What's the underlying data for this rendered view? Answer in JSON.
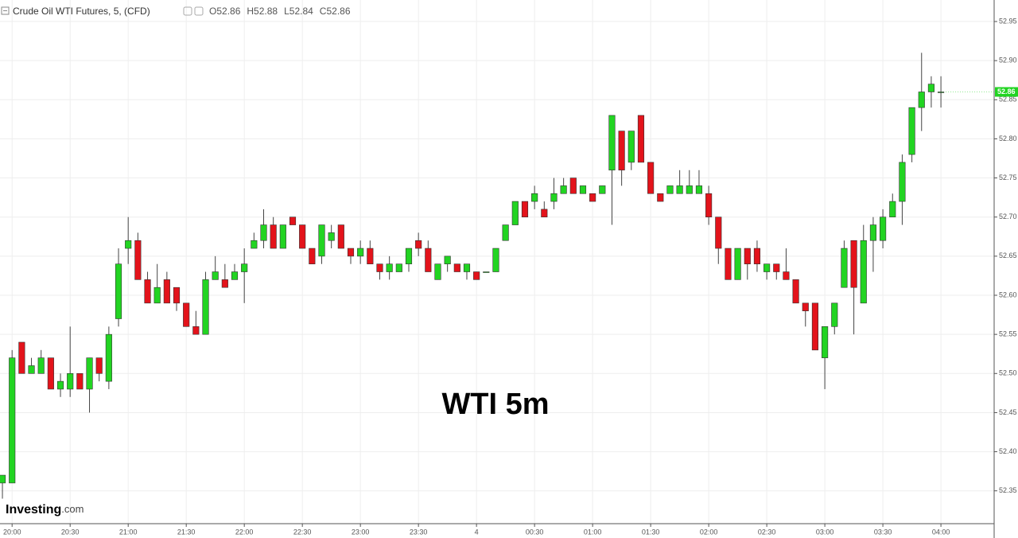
{
  "chart_data": {
    "type": "candlestick",
    "title": "Crude Oil WTI Futures, 5, (CFD)",
    "ohlc_header": [
      {
        "label": "O",
        "value": 52.86
      },
      {
        "label": "H",
        "value": 52.88
      },
      {
        "label": "L",
        "value": 52.84
      },
      {
        "label": "C",
        "value": 52.86
      }
    ],
    "annotation": "WTI 5m",
    "watermark": [
      "Investing",
      ".com"
    ],
    "last_price": 52.86,
    "up_color": "#22d422",
    "down_color": "#e3131b",
    "grid": true,
    "open": [
      52.36,
      52.36,
      52.54,
      52.5,
      52.5,
      52.52,
      52.48,
      52.48,
      52.5,
      52.48,
      52.52,
      52.49,
      52.57,
      52.66,
      52.67,
      52.62,
      52.59,
      52.62,
      52.61,
      52.59,
      52.56,
      52.55,
      52.62,
      52.62,
      52.62,
      52.63,
      52.66,
      52.67,
      52.69,
      52.66,
      52.7,
      52.69,
      52.66,
      52.65,
      52.67,
      52.69,
      52.66,
      52.65,
      52.66,
      52.64,
      52.63,
      52.63,
      52.64,
      52.67,
      52.66,
      52.62,
      52.64,
      52.64,
      52.63,
      52.63,
      52.63,
      52.63,
      52.67,
      52.69,
      52.72,
      52.72,
      52.71,
      52.72,
      52.73,
      52.75,
      52.73,
      52.73,
      52.73,
      52.76,
      52.81,
      52.77,
      52.83,
      52.77,
      52.73,
      52.73,
      52.73,
      52.73,
      52.73,
      52.73,
      52.7,
      52.66,
      52.62,
      52.66,
      52.66,
      52.63,
      52.64,
      52.63,
      52.62,
      52.59,
      52.59,
      52.52,
      52.56,
      52.61,
      52.67,
      52.59,
      52.67,
      52.67,
      52.7,
      52.72,
      52.78,
      52.84,
      52.86,
      52.86
    ],
    "high": [
      52.37,
      52.53,
      52.54,
      52.52,
      52.53,
      52.52,
      52.5,
      52.56,
      52.5,
      52.52,
      52.52,
      52.56,
      52.66,
      52.7,
      52.68,
      52.63,
      52.64,
      52.63,
      52.61,
      52.59,
      52.58,
      52.63,
      52.65,
      52.64,
      52.64,
      52.66,
      52.68,
      52.71,
      52.7,
      52.69,
      52.7,
      52.69,
      52.66,
      52.69,
      52.69,
      52.69,
      52.66,
      52.67,
      52.67,
      52.64,
      52.65,
      52.64,
      52.66,
      52.68,
      52.67,
      52.64,
      52.65,
      52.64,
      52.64,
      52.63,
      52.63,
      52.66,
      52.69,
      52.72,
      52.72,
      52.74,
      52.72,
      52.75,
      52.75,
      52.75,
      52.74,
      52.73,
      52.74,
      52.83,
      52.81,
      52.81,
      52.83,
      52.77,
      52.73,
      52.74,
      52.76,
      52.76,
      52.76,
      52.74,
      52.7,
      52.66,
      52.66,
      52.66,
      52.67,
      52.64,
      52.64,
      52.66,
      52.62,
      52.59,
      52.59,
      52.56,
      52.59,
      52.67,
      52.67,
      52.69,
      52.7,
      52.71,
      52.73,
      52.78,
      52.84,
      52.91,
      52.88,
      52.88
    ],
    "low": [
      52.34,
      52.36,
      52.5,
      52.5,
      52.5,
      52.48,
      52.47,
      52.47,
      52.48,
      52.45,
      52.49,
      52.48,
      52.56,
      52.64,
      52.62,
      52.59,
      52.59,
      52.59,
      52.58,
      52.56,
      52.55,
      52.55,
      52.62,
      52.61,
      52.62,
      52.59,
      52.66,
      52.66,
      52.66,
      52.66,
      52.69,
      52.66,
      52.64,
      52.64,
      52.66,
      52.66,
      52.64,
      52.64,
      52.64,
      52.62,
      52.62,
      52.63,
      52.63,
      52.65,
      52.63,
      52.62,
      52.63,
      52.63,
      52.62,
      52.62,
      52.63,
      52.63,
      52.67,
      52.69,
      52.7,
      52.71,
      52.7,
      52.71,
      52.73,
      52.73,
      52.73,
      52.72,
      52.73,
      52.69,
      52.74,
      52.76,
      52.77,
      52.73,
      52.72,
      52.73,
      52.73,
      52.73,
      52.73,
      52.69,
      52.64,
      52.62,
      52.62,
      52.62,
      52.63,
      52.62,
      52.62,
      52.62,
      52.59,
      52.56,
      52.53,
      52.48,
      52.55,
      52.61,
      52.55,
      52.59,
      52.63,
      52.66,
      52.7,
      52.69,
      52.77,
      52.81,
      52.84,
      52.84
    ],
    "close": [
      52.37,
      52.52,
      52.5,
      52.51,
      52.52,
      52.48,
      52.49,
      52.5,
      52.48,
      52.52,
      52.5,
      52.55,
      52.64,
      52.67,
      52.62,
      52.59,
      52.61,
      52.59,
      52.59,
      52.56,
      52.55,
      52.62,
      52.63,
      52.61,
      52.63,
      52.64,
      52.67,
      52.69,
      52.66,
      52.69,
      52.69,
      52.66,
      52.64,
      52.69,
      52.68,
      52.66,
      52.65,
      52.66,
      52.64,
      52.63,
      52.64,
      52.64,
      52.66,
      52.66,
      52.63,
      52.64,
      52.65,
      52.63,
      52.64,
      52.62,
      52.63,
      52.66,
      52.69,
      52.72,
      52.7,
      52.73,
      52.7,
      52.73,
      52.74,
      52.73,
      52.74,
      52.72,
      52.74,
      52.83,
      52.76,
      52.81,
      52.77,
      52.73,
      52.72,
      52.74,
      52.74,
      52.74,
      52.74,
      52.7,
      52.66,
      52.62,
      52.66,
      52.64,
      52.64,
      52.64,
      52.63,
      52.62,
      52.59,
      52.58,
      52.53,
      52.56,
      52.59,
      52.66,
      52.61,
      52.67,
      52.69,
      52.7,
      52.72,
      52.77,
      52.84,
      52.86,
      52.87,
      52.86
    ],
    "xlim": [
      -0.25,
      102.5
    ],
    "xticks": [
      {
        "value": 1,
        "label": "20:00"
      },
      {
        "value": 7,
        "label": "20:30"
      },
      {
        "value": 13,
        "label": "21:00"
      },
      {
        "value": 19,
        "label": "21:30"
      },
      {
        "value": 25,
        "label": "22:00"
      },
      {
        "value": 31,
        "label": "22:30"
      },
      {
        "value": 37,
        "label": "23:00"
      },
      {
        "value": 43,
        "label": "23:30"
      },
      {
        "value": 49,
        "label": "4"
      },
      {
        "value": 55,
        "label": "00:30"
      },
      {
        "value": 61,
        "label": "01:00"
      },
      {
        "value": 67,
        "label": "01:30"
      },
      {
        "value": 73,
        "label": "02:00"
      },
      {
        "value": 79,
        "label": "02:30"
      },
      {
        "value": 85,
        "label": "03:00"
      },
      {
        "value": 91,
        "label": "03:30"
      },
      {
        "value": 97,
        "label": "04:00"
      }
    ],
    "ylim": [
      52.308,
      52.9775
    ],
    "yticks": [
      52.35,
      {
        "value": 52.4,
        "label": "52.40"
      },
      52.45,
      {
        "value": 52.5,
        "label": "52.50"
      },
      52.55,
      {
        "value": 52.6,
        "label": "52.60"
      },
      52.65,
      {
        "value": 52.7,
        "label": "52.70"
      },
      52.75,
      {
        "value": 52.8,
        "label": "52.80"
      },
      52.85,
      {
        "value": 52.9,
        "label": "52.90"
      },
      52.95
    ]
  }
}
